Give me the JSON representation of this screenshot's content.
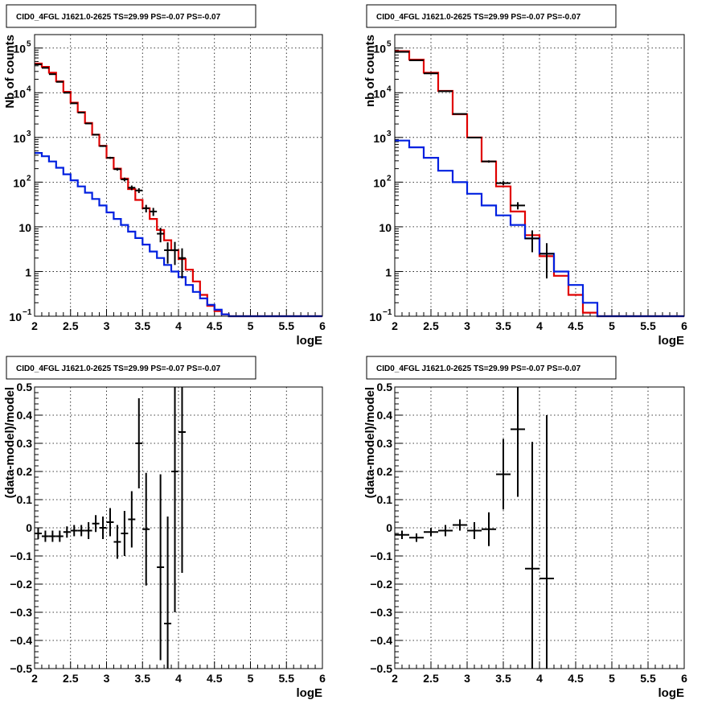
{
  "colors": {
    "data": "#000000",
    "total_model": "#e00000",
    "component_model": "#0020e0"
  },
  "chart_data": [
    {
      "type": "line",
      "title": "CID0_4FGL J1621.0-2625 TS=29.99 PS=-0.07 PS=-0.07",
      "xlabel": "logE",
      "ylabel": "Nb of counts",
      "xlim": [
        2,
        6
      ],
      "ylim": [
        0.1,
        200000
      ],
      "ylog": true,
      "grid": true,
      "xticks": [
        "2",
        "2.5",
        "3",
        "3.5",
        "4",
        "4.5",
        "5",
        "5.5",
        "6"
      ],
      "yticks": [
        {
          "value": 0.1,
          "base": "10",
          "exp": "−1"
        },
        {
          "value": 1,
          "base": "1",
          "exp": ""
        },
        {
          "value": 10,
          "base": "10",
          "exp": ""
        },
        {
          "value": 100,
          "base": "10",
          "exp": "2"
        },
        {
          "value": 1000,
          "base": "10",
          "exp": "3"
        },
        {
          "value": 10000,
          "base": "10",
          "exp": "4"
        },
        {
          "value": 100000,
          "base": "10",
          "exp": "5"
        }
      ],
      "bin_edges": [
        2.0,
        2.1,
        2.2,
        2.3,
        2.4,
        2.5,
        2.6,
        2.7,
        2.8,
        2.9,
        3.0,
        3.1,
        3.2,
        3.3,
        3.4,
        3.5,
        3.6,
        3.7,
        3.8,
        3.9,
        4.0,
        4.1,
        4.2,
        4.3,
        4.4,
        4.5,
        4.6,
        4.7,
        4.8,
        4.9,
        5.0,
        5.1,
        5.2,
        5.3,
        5.4,
        5.5,
        5.6,
        5.7,
        5.8,
        5.9,
        6.0
      ],
      "series": [
        {
          "name": "",
          "role": "total_model",
          "values": [
            45000,
            38000,
            28000,
            18000,
            10500,
            6000,
            3700,
            2100,
            1150,
            650,
            350,
            200,
            120,
            70,
            40,
            26,
            15,
            8.5,
            5,
            3,
            1.9,
            1.1,
            0.6,
            0.3,
            0.17,
            0.13,
            0.11,
            0.1,
            0.1,
            0.1,
            0.1,
            0.1,
            0.1,
            0.1,
            0.1,
            0.1,
            0.1,
            0.1,
            0.1,
            0.1
          ]
        },
        {
          "name": "",
          "role": "component_model",
          "values": [
            450,
            380,
            290,
            210,
            150,
            110,
            80,
            58,
            42,
            30,
            21,
            15,
            11,
            7.8,
            5.6,
            4,
            2.8,
            2,
            1.4,
            1,
            0.75,
            0.5,
            0.35,
            0.25,
            0.18,
            0.14,
            0.11,
            0.1,
            0.1,
            0.1,
            0.1,
            0.1,
            0.1,
            0.1,
            0.1,
            0.1,
            0.1,
            0.1,
            0.1,
            0.1
          ]
        },
        {
          "name": "",
          "role": "data",
          "x": [
            2.05,
            2.15,
            2.25,
            2.35,
            2.45,
            2.55,
            2.65,
            2.75,
            2.85,
            2.95,
            3.05,
            3.15,
            3.25,
            3.35,
            3.45,
            3.55,
            3.65,
            3.75,
            3.85,
            3.95,
            4.05
          ],
          "y": [
            43000,
            36000,
            26000,
            17500,
            10000,
            5800,
            3600,
            2050,
            1150,
            640,
            350,
            195,
            115,
            75,
            65,
            26,
            22,
            7,
            3,
            3,
            2
          ],
          "yerr_lo": [
            200,
            180,
            150,
            130,
            100,
            75,
            60,
            45,
            34,
            25,
            19,
            14,
            11,
            9,
            8,
            5,
            4.5,
            2.5,
            1.5,
            1.6,
            1.3
          ],
          "yerr_hi": [
            200,
            180,
            150,
            130,
            100,
            75,
            60,
            45,
            34,
            25,
            19,
            14,
            11,
            9,
            8,
            5,
            4.5,
            2.5,
            1.5,
            1.6,
            1.3
          ]
        }
      ]
    },
    {
      "type": "line",
      "title": "CID0_4FGL J1621.0-2625 TS=29.99 PS=-0.07 PS=-0.07",
      "xlabel": "logE",
      "ylabel": "nb of counts",
      "xlim": [
        2,
        6
      ],
      "ylim": [
        0.1,
        200000
      ],
      "ylog": true,
      "grid": true,
      "xticks": [
        "2",
        "2.5",
        "3",
        "3.5",
        "4",
        "4.5",
        "5",
        "5.5",
        "6"
      ],
      "yticks": [
        {
          "value": 0.1,
          "base": "10",
          "exp": "−1"
        },
        {
          "value": 1,
          "base": "1",
          "exp": ""
        },
        {
          "value": 10,
          "base": "10",
          "exp": ""
        },
        {
          "value": 100,
          "base": "10",
          "exp": "2"
        },
        {
          "value": 1000,
          "base": "10",
          "exp": "3"
        },
        {
          "value": 10000,
          "base": "10",
          "exp": "4"
        },
        {
          "value": 100000,
          "base": "10",
          "exp": "5"
        }
      ],
      "bin_edges": [
        2.0,
        2.2,
        2.4,
        2.6,
        2.8,
        3.0,
        3.2,
        3.4,
        3.6,
        3.8,
        4.0,
        4.2,
        4.4,
        4.6,
        4.8,
        5.0,
        5.2,
        5.4,
        5.6,
        5.8,
        6.0
      ],
      "series": [
        {
          "name": "",
          "role": "total_model",
          "values": [
            85000,
            55000,
            28000,
            11000,
            3300,
            1000,
            290,
            80,
            22,
            6.5,
            2.2,
            0.8,
            0.3,
            0.12,
            0.1,
            0.1,
            0.1,
            0.1,
            0.1,
            0.1
          ]
        },
        {
          "name": "",
          "role": "component_model",
          "values": [
            850,
            600,
            350,
            180,
            100,
            55,
            30,
            18,
            11,
            5.5,
            2.5,
            1,
            0.5,
            0.2,
            0.1,
            0.1,
            0.1,
            0.1,
            0.1,
            0.1
          ]
        },
        {
          "name": "",
          "role": "data",
          "x": [
            2.1,
            2.3,
            2.5,
            2.7,
            2.9,
            3.1,
            3.3,
            3.5,
            3.7,
            3.9,
            4.1
          ],
          "y": [
            82000,
            53000,
            27000,
            10800,
            3350,
            990,
            290,
            95,
            30,
            5.5,
            2.5
          ],
          "yerr_lo": [
            290,
            230,
            165,
            105,
            58,
            31,
            17,
            10,
            5.5,
            2.8,
            1.8
          ],
          "yerr_hi": [
            290,
            230,
            165,
            105,
            58,
            31,
            17,
            10,
            5.5,
            2.8,
            1.8
          ]
        }
      ]
    },
    {
      "type": "scatter",
      "title": "CID0_4FGL J1621.0-2625 TS=29.99 PS=-0.07 PS=-0.07",
      "xlabel": "logE",
      "ylabel": "(data-model)/model",
      "xlim": [
        2,
        6
      ],
      "ylim": [
        -0.5,
        0.5
      ],
      "ylog": false,
      "grid": true,
      "xticks": [
        "2",
        "2.5",
        "3",
        "3.5",
        "4",
        "4.5",
        "5",
        "5.5",
        "6"
      ],
      "yticks": [
        {
          "value": -0.5,
          "label": "−0.5"
        },
        {
          "value": -0.4,
          "label": "−0.4"
        },
        {
          "value": -0.3,
          "label": "−0.3"
        },
        {
          "value": -0.2,
          "label": "−0.2"
        },
        {
          "value": -0.1,
          "label": "−0.1"
        },
        {
          "value": 0,
          "label": "0"
        },
        {
          "value": 0.1,
          "label": "0.1"
        },
        {
          "value": 0.2,
          "label": "0.2"
        },
        {
          "value": 0.3,
          "label": "0.3"
        },
        {
          "value": 0.4,
          "label": "0.4"
        },
        {
          "value": 0.5,
          "label": "0.5"
        }
      ],
      "series": [
        {
          "name": "",
          "role": "data",
          "x_halfwidth": 0.05,
          "x": [
            2.05,
            2.15,
            2.25,
            2.35,
            2.45,
            2.55,
            2.65,
            2.75,
            2.85,
            2.95,
            3.05,
            3.15,
            3.25,
            3.35,
            3.45,
            3.55,
            3.75,
            3.85,
            3.95,
            4.05
          ],
          "y": [
            -0.02,
            -0.03,
            -0.03,
            -0.03,
            -0.015,
            -0.01,
            -0.01,
            -0.01,
            0.015,
            0,
            0.02,
            -0.05,
            -0.02,
            0.03,
            0.3,
            -0.005,
            -0.14,
            -0.34,
            0.2,
            0.34
          ],
          "yerr": [
            0.02,
            0.02,
            0.02,
            0.02,
            0.02,
            0.02,
            0.02,
            0.03,
            0.03,
            0.04,
            0.05,
            0.06,
            0.08,
            0.1,
            0.16,
            0.2,
            0.33,
            0.38,
            0.5,
            0.5
          ]
        }
      ]
    },
    {
      "type": "scatter",
      "title": "CID0_4FGL J1621.0-2625 TS=29.99 PS=-0.07 PS=-0.07",
      "xlabel": "logE",
      "ylabel": "(data-model)/model",
      "xlim": [
        2,
        6
      ],
      "ylim": [
        -0.5,
        0.5
      ],
      "ylog": false,
      "grid": true,
      "xticks": [
        "2",
        "2.5",
        "3",
        "3.5",
        "4",
        "4.5",
        "5",
        "5.5",
        "6"
      ],
      "yticks": [
        {
          "value": -0.5,
          "label": "−0.5"
        },
        {
          "value": -0.4,
          "label": "−0.4"
        },
        {
          "value": -0.3,
          "label": "−0.3"
        },
        {
          "value": -0.2,
          "label": "−0.2"
        },
        {
          "value": -0.1,
          "label": "−0.1"
        },
        {
          "value": 0,
          "label": "0"
        },
        {
          "value": 0.1,
          "label": "0.1"
        },
        {
          "value": 0.2,
          "label": "0.2"
        },
        {
          "value": 0.3,
          "label": "0.3"
        },
        {
          "value": 0.4,
          "label": "0.4"
        },
        {
          "value": 0.5,
          "label": "0.5"
        }
      ],
      "series": [
        {
          "name": "",
          "role": "data",
          "x_halfwidth": 0.1,
          "x": [
            2.1,
            2.3,
            2.5,
            2.7,
            2.9,
            3.1,
            3.3,
            3.5,
            3.7,
            3.9,
            4.1
          ],
          "y": [
            -0.025,
            -0.035,
            -0.015,
            -0.01,
            0.01,
            -0.01,
            -0.005,
            0.19,
            0.35,
            -0.145,
            -0.18
          ],
          "yerr": [
            0.015,
            0.015,
            0.015,
            0.02,
            0.02,
            0.03,
            0.06,
            0.125,
            0.24,
            0.45,
            0.58
          ]
        }
      ]
    }
  ]
}
